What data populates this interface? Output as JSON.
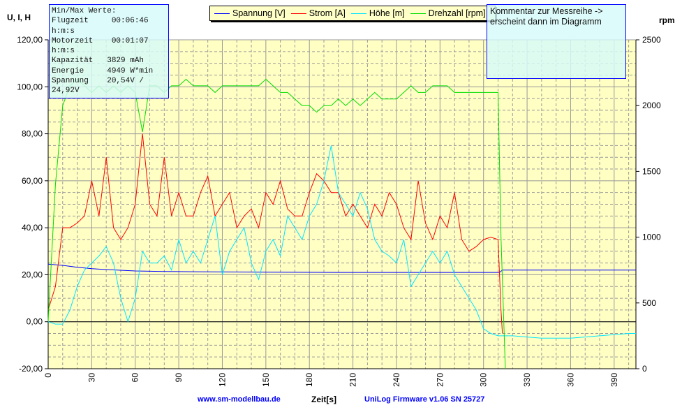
{
  "chart_data": {
    "type": "line",
    "ylabel_left": "U, I, H",
    "ylabel_right": "rpm",
    "xlabel": "Zeit[s]",
    "xlim": [
      0,
      405
    ],
    "ylim_left": [
      -20,
      120
    ],
    "ylim_right": [
      0,
      2500
    ],
    "x_ticks": [
      0,
      30,
      60,
      90,
      120,
      150,
      180,
      210,
      240,
      270,
      300,
      330,
      360,
      390
    ],
    "y_left_ticks": [
      "-20,00",
      "0,00",
      "20,00",
      "40,00",
      "60,00",
      "80,00",
      "100,00",
      "120,00"
    ],
    "y_right_ticks": [
      "0",
      "500",
      "1000",
      "1500",
      "2000",
      "2500"
    ],
    "grid": true,
    "legend_placement": "top",
    "series": [
      {
        "name": "Spannung [V]",
        "color": "#0000ff",
        "axis": "left",
        "x": [
          0,
          10,
          20,
          30,
          40,
          60,
          80,
          100,
          150,
          200,
          250,
          300,
          311,
          313,
          405
        ],
        "y": [
          24.5,
          24,
          23.2,
          22.6,
          22.2,
          21.6,
          21.4,
          21.3,
          21.1,
          21,
          21,
          21,
          21,
          22,
          22
        ]
      },
      {
        "name": "Strom [A]",
        "color": "#ff0000",
        "axis": "left",
        "x": [
          0,
          5,
          10,
          15,
          20,
          25,
          30,
          35,
          40,
          45,
          50,
          55,
          60,
          65,
          70,
          75,
          80,
          85,
          90,
          95,
          100,
          105,
          110,
          115,
          120,
          125,
          130,
          135,
          140,
          145,
          150,
          155,
          160,
          165,
          170,
          175,
          180,
          185,
          190,
          195,
          200,
          205,
          210,
          215,
          220,
          225,
          230,
          235,
          240,
          245,
          250,
          255,
          260,
          265,
          270,
          275,
          280,
          285,
          290,
          295,
          300,
          305,
          310,
          312,
          313
        ],
        "y": [
          5,
          15,
          40,
          40,
          42,
          45,
          60,
          45,
          70,
          40,
          35,
          40,
          50,
          80,
          50,
          45,
          70,
          45,
          55,
          45,
          45,
          55,
          62,
          45,
          50,
          55,
          40,
          45,
          48,
          40,
          55,
          50,
          60,
          48,
          45,
          45,
          55,
          63,
          60,
          55,
          55,
          45,
          50,
          45,
          40,
          50,
          45,
          55,
          50,
          40,
          35,
          60,
          42,
          35,
          45,
          40,
          55,
          35,
          30,
          32,
          35,
          36,
          35,
          5,
          -5
        ]
      },
      {
        "name": "Höhe [m]",
        "color": "#00e5ff",
        "axis": "left",
        "x": [
          0,
          5,
          10,
          15,
          20,
          25,
          30,
          35,
          40,
          45,
          50,
          55,
          60,
          65,
          70,
          75,
          80,
          85,
          90,
          95,
          100,
          105,
          110,
          115,
          120,
          125,
          130,
          135,
          140,
          145,
          150,
          155,
          160,
          165,
          170,
          175,
          180,
          185,
          190,
          195,
          200,
          205,
          210,
          215,
          220,
          225,
          230,
          235,
          240,
          245,
          250,
          255,
          260,
          265,
          270,
          275,
          280,
          285,
          290,
          295,
          300,
          305,
          310,
          320,
          340,
          360,
          380,
          400,
          405
        ],
        "y": [
          0,
          -1,
          -1,
          5,
          15,
          22,
          25,
          28,
          32,
          25,
          10,
          0,
          10,
          30,
          25,
          25,
          28,
          22,
          35,
          25,
          30,
          25,
          35,
          45,
          20,
          30,
          35,
          40,
          25,
          18,
          30,
          35,
          28,
          45,
          40,
          35,
          45,
          50,
          60,
          75,
          55,
          50,
          45,
          55,
          48,
          35,
          30,
          28,
          25,
          35,
          15,
          20,
          25,
          30,
          25,
          30,
          20,
          15,
          10,
          5,
          -3,
          -5,
          -6,
          -6,
          -7,
          -7,
          -6,
          -5,
          -5
        ]
      },
      {
        "name": "Drehzahl [rpm]",
        "color": "#00dd00",
        "axis": "right",
        "x": [
          0,
          5,
          10,
          15,
          20,
          25,
          30,
          35,
          40,
          45,
          50,
          55,
          60,
          65,
          70,
          75,
          80,
          85,
          90,
          95,
          100,
          105,
          110,
          115,
          120,
          125,
          130,
          135,
          140,
          145,
          150,
          155,
          160,
          165,
          170,
          175,
          180,
          185,
          190,
          195,
          200,
          205,
          210,
          215,
          220,
          225,
          230,
          235,
          240,
          245,
          250,
          255,
          260,
          265,
          270,
          275,
          280,
          285,
          290,
          295,
          300,
          305,
          310,
          312,
          315
        ],
        "y": [
          360,
          1400,
          2000,
          2150,
          2200,
          2150,
          2100,
          2150,
          2100,
          2150,
          2100,
          2150,
          2100,
          1800,
          2150,
          2150,
          2100,
          2150,
          2150,
          2200,
          2150,
          2150,
          2150,
          2100,
          2150,
          2150,
          2150,
          2150,
          2150,
          2150,
          2200,
          2150,
          2100,
          2100,
          2050,
          2000,
          2000,
          1950,
          2000,
          2000,
          2050,
          2000,
          2050,
          2000,
          2050,
          2100,
          2050,
          2050,
          2050,
          2100,
          2150,
          2100,
          2100,
          2150,
          2150,
          2150,
          2100,
          2100,
          2100,
          2100,
          2100,
          2100,
          2100,
          1000,
          0
        ]
      }
    ],
    "annotations": {
      "minmax_box": [
        "Min/Max Werte:",
        "Flugzeit     00:06:46",
        "h:m:s",
        "Motorzeit    00:01:07",
        "h:m:s",
        "Kapazität   3829 mAh",
        "Energie     4949 W*min",
        "Spannung    20,54V /",
        "24,92V"
      ],
      "comment": "Kommentar zur Messreihe -> erscheint dann im Diagramm"
    },
    "footer_left": "www.sm-modellbau.de",
    "footer_right": "UniLog Firmware v1.06 SN 25727"
  }
}
